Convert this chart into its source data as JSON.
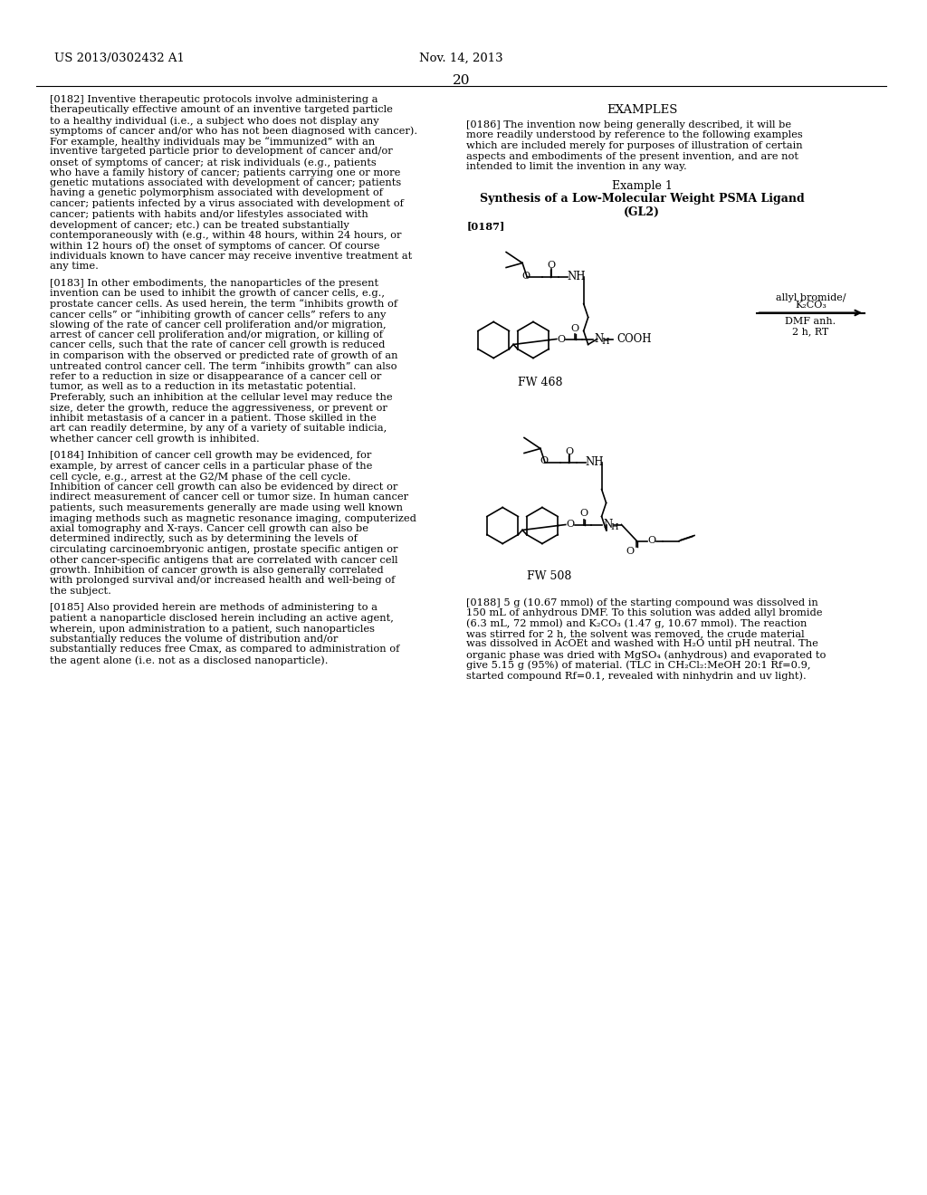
{
  "page_number": "20",
  "patent_number": "US 2013/0302432 A1",
  "date": "Nov. 14, 2013",
  "background_color": "#ffffff",
  "text_color": "#000000",
  "left_column_paragraphs": [
    {
      "tag": "[0182]",
      "text": "Inventive therapeutic protocols involve administering a therapeutically effective amount of an inventive targeted particle to a healthy individual (i.e., a subject who does not display any symptoms of cancer and/or who has not been diagnosed with cancer). For example, healthy individuals may be “immunized” with an inventive targeted particle prior to development of cancer and/or onset of symptoms of cancer; at risk individuals (e.g., patients who have a family history of cancer; patients carrying one or more genetic mutations associated with development of cancer; patients having a genetic polymorphism associated with development of cancer; patients infected by a virus associated with development of cancer; patients with habits and/or lifestyles associated with development of cancer; etc.) can be treated substantially contemporaneously with (e.g., within 48 hours, within 24 hours, or within 12 hours of) the onset of symptoms of cancer. Of course individuals known to have cancer may receive inventive treatment at any time."
    },
    {
      "tag": "[0183]",
      "text": "In other embodiments, the nanoparticles of the present invention can be used to inhibit the growth of cancer cells, e.g., prostate cancer cells. As used herein, the term “inhibits growth of cancer cells” or “inhibiting growth of cancer cells” refers to any slowing of the rate of cancer cell proliferation and/or migration, arrest of cancer cell proliferation and/or migration, or killing of cancer cells, such that the rate of cancer cell growth is reduced in comparison with the observed or predicted rate of growth of an untreated control cancer cell. The term “inhibits growth” can also refer to a reduction in size or disappearance of a cancer cell or tumor, as well as to a reduction in its metastatic potential. Preferably, such an inhibition at the cellular level may reduce the size, deter the growth, reduce the aggressiveness, or prevent or inhibit metastasis of a cancer in a patient. Those skilled in the art can readily determine, by any of a variety of suitable indicia, whether cancer cell growth is inhibited."
    },
    {
      "tag": "[0184]",
      "text": "Inhibition of cancer cell growth may be evidenced, for example, by arrest of cancer cells in a particular phase of the cell cycle, e.g., arrest at the G2/M phase of the cell cycle. Inhibition of cancer cell growth can also be evidenced by direct or indirect measurement of cancer cell or tumor size. In human cancer patients, such measurements generally are made using well known imaging methods such as magnetic resonance imaging, computerized axial tomography and X-rays. Cancer cell growth can also be determined indirectly, such as by determining the levels of circulating carcinoembryonic antigen, prostate specific antigen or other cancer-specific antigens that are correlated with cancer cell growth. Inhibition of cancer growth is also generally correlated with prolonged survival and/or increased health and well-being of the subject."
    },
    {
      "tag": "[0185]",
      "text": "Also provided herein are methods of administering to a patient a nanoparticle disclosed herein including an active agent, wherein, upon administration to a patient, such nanoparticles substantially reduces the volume of distribution and/or substantially reduces free Cmax, as compared to administration of the agent alone (i.e. not as a disclosed nanoparticle)."
    }
  ],
  "right_column": {
    "section_title": "EXAMPLES",
    "para_186_tag": "[0186]",
    "para_186_text": "The invention now being generally described, it will be more readily understood by reference to the following examples which are included merely for purposes of illustration of certain aspects and embodiments of the present invention, and are not intended to limit the invention in any way.",
    "example_title": "Example 1",
    "example_subtitle": "Synthesis of a Low-Molecular Weight PSMA Ligand\n(GL2)",
    "para_187_tag": "[0187]",
    "fw468_label": "FW 468",
    "reaction_line1": "allyl bromide/",
    "reaction_line2": "K₂CO₃",
    "reaction_line3": "DMF anh.",
    "reaction_line4": "2 h, RT",
    "fw508_label": "FW 508",
    "para_188_tag": "[0188]",
    "para_188_text": "5 g (10.67 mmol) of the starting compound was dissolved in 150 mL of anhydrous DMF. To this solution was added allyl bromide (6.3 mL, 72 mmol) and K₂CO₃ (1.47 g, 10.67 mmol). The reaction was stirred for 2 h, the solvent was removed, the crude material was dissolved in AcOEt and washed with H₂O until pH neutral. The organic phase was dried with MgSO₄ (anhydrous) and evaporated to give 5.15 g (95%) of material. (TLC in CH₂Cl₂:MeOH 20:1 Rf=0.9, started compound Rf=0.1, revealed with ninhydrin and uv light)."
  }
}
